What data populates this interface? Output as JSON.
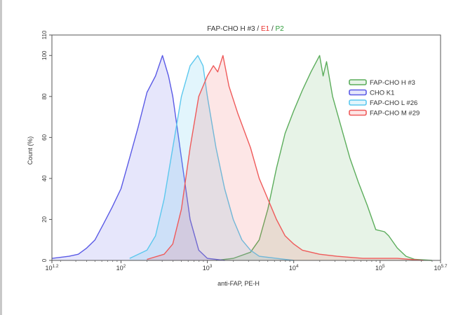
{
  "chart_data": {
    "type": "area",
    "title_parts": [
      {
        "text": "FAP-CHO H #3 / ",
        "color": "#333333"
      },
      {
        "text": "E1",
        "color": "#e8332f"
      },
      {
        "text": " / ",
        "color": "#333333"
      },
      {
        "text": "P2",
        "color": "#2e9e3a"
      }
    ],
    "xlabel": "anti-FAP, PE-H",
    "ylabel": "Count (%)",
    "x_scale": "log",
    "xlim": [
      15.85,
      501187
    ],
    "ylim": [
      0,
      110
    ],
    "x_ticks": [
      {
        "value": 15.85,
        "base": "10",
        "exp": "1.2"
      },
      {
        "value": 100,
        "base": "10",
        "exp": "2"
      },
      {
        "value": 1000,
        "base": "10",
        "exp": "3"
      },
      {
        "value": 10000,
        "base": "10",
        "exp": "4"
      },
      {
        "value": 100000,
        "base": "10",
        "exp": "5"
      },
      {
        "value": 501187,
        "base": "10",
        "exp": "5.7"
      }
    ],
    "y_ticks": [
      0,
      20,
      40,
      60,
      80,
      100,
      110
    ],
    "grid": false,
    "legend_placement": "top-right",
    "series": [
      {
        "name": "FAP-CHO H #3",
        "color": "#5cad5c",
        "fill": "rgba(92,173,92,0.15)",
        "x": [
          1259,
          1995,
          3162,
          3981,
          5012,
          6310,
          7943,
          10000,
          12589,
          15849,
          19953,
          21878,
          23988,
          28184,
          35481,
          44668,
          56234,
          70795,
          89125,
          112202,
          125893,
          158489,
          199526,
          251189,
          398107
        ],
        "y": [
          0,
          1,
          4,
          10,
          25,
          45,
          62,
          73,
          83,
          92,
          100,
          90,
          97,
          80,
          65,
          50,
          38,
          27,
          15,
          14,
          12,
          6,
          2,
          0.5,
          0
        ]
      },
      {
        "name": "CHO K1",
        "color": "#5a5ae6",
        "fill": "rgba(90,90,230,0.15)",
        "x": [
          16,
          25,
          32,
          40,
          50,
          63,
          79,
          100,
          126,
          158,
          200,
          251,
          302,
          355,
          398,
          501,
          631,
          794,
          1000,
          1585
        ],
        "y": [
          1,
          2,
          3,
          6,
          10,
          18,
          26,
          35,
          50,
          65,
          82,
          90,
          100,
          90,
          80,
          50,
          20,
          5,
          1,
          0
        ]
      },
      {
        "name": "FAP-CHO L #26",
        "color": "#5cc8ee",
        "fill": "rgba(92,200,238,0.18)",
        "x": [
          126,
          200,
          251,
          316,
          398,
          501,
          631,
          776,
          891,
          1000,
          1259,
          1585,
          1995,
          2512,
          3162,
          3981,
          6310,
          10000
        ],
        "y": [
          1,
          5,
          12,
          30,
          55,
          80,
          95,
          100,
          95,
          80,
          55,
          35,
          20,
          10,
          5,
          2,
          1,
          0
        ]
      },
      {
        "name": "FAP-CHO M #29",
        "color": "#ef5a5a",
        "fill": "rgba(239,90,90,0.15)",
        "x": [
          200,
          316,
          398,
          501,
          631,
          794,
          1000,
          1175,
          1318,
          1514,
          1778,
          2239,
          3162,
          3981,
          5012,
          6310,
          7943,
          10000,
          12589,
          19953,
          31623,
          63096,
          158489,
          316228
        ],
        "y": [
          0.5,
          3,
          8,
          25,
          55,
          80,
          90,
          95,
          92,
          100,
          85,
          72,
          55,
          40,
          30,
          20,
          12,
          8,
          5,
          3,
          2,
          1,
          1,
          0
        ]
      }
    ]
  }
}
